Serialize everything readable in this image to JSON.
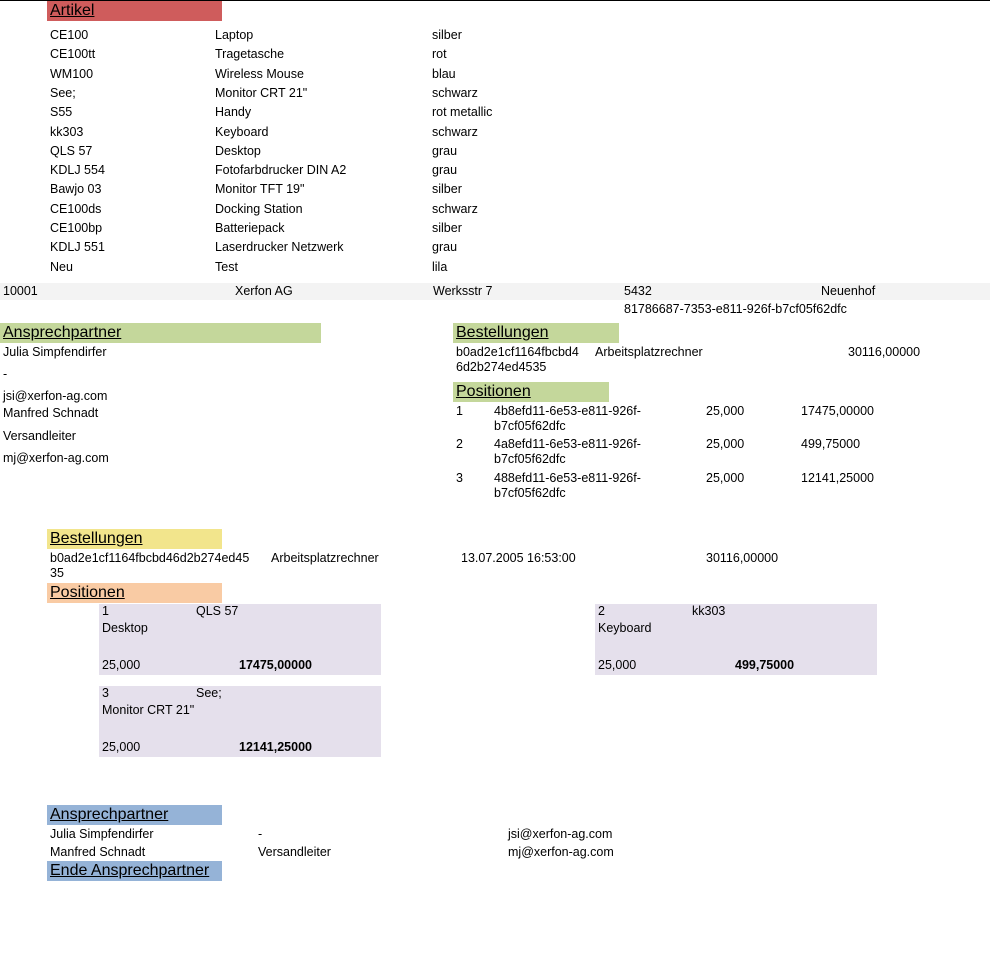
{
  "colors": {
    "artikel_header": "#cf5c5c",
    "green_header": "#c4d79b",
    "yellow_header": "#f2e58c",
    "orange_header": "#f9cba4",
    "blue_header": "#95b3d7",
    "card_bg": "#e5e0ec"
  },
  "artikel": {
    "header": "Artikel",
    "rows": [
      {
        "id": "CE100",
        "name": "Laptop",
        "color": "silber"
      },
      {
        "id": "CE100tt",
        "name": "Tragetasche",
        "color": "rot"
      },
      {
        "id": "WM100",
        "name": "Wireless Mouse",
        "color": "blau"
      },
      {
        "id": "See;",
        "name": "Monitor CRT 21\"",
        "color": "schwarz"
      },
      {
        "id": "S55",
        "name": "Handy",
        "color": "rot metallic"
      },
      {
        "id": "kk303",
        "name": "Keyboard",
        "color": "schwarz"
      },
      {
        "id": "QLS 57",
        "name": "Desktop",
        "color": "grau"
      },
      {
        "id": "KDLJ 554",
        "name": "Fotofarbdrucker DIN A2",
        "color": "grau"
      },
      {
        "id": "Bawjo 03",
        "name": "Monitor TFT 19\"",
        "color": "silber"
      },
      {
        "id": "CE100ds",
        "name": "Docking Station",
        "color": "schwarz"
      },
      {
        "id": "CE100bp",
        "name": "Batteriepack",
        "color": "silber"
      },
      {
        "id": "KDLJ 551",
        "name": "Laserdrucker Netzwerk",
        "color": "grau"
      },
      {
        "id": "Neu",
        "name": "Test",
        "color": "lila"
      }
    ]
  },
  "kunde": {
    "nr": "10001",
    "name": "Xerfon AG",
    "street": "Werksstr 7",
    "zip": "5432",
    "city": "Neuenhof",
    "guid": "81786687-7353-e811-926f-b7cf05f62dfc"
  },
  "ansprechpartner_left": {
    "header": "Ansprechpartner",
    "p1_name": "Julia Simpfendirfer",
    "p1_role": "-",
    "p1_email": "jsi@xerfon-ag.com",
    "p2_name": "Manfred Schnadt",
    "p2_role": "Versandleiter",
    "p2_email": "mj@xerfon-ag.com"
  },
  "bestellungen_right": {
    "header": "Bestellungen",
    "id": "b0ad2e1cf1164fbcbd46d2b274ed4535",
    "id_line1": "b0ad2e1cf1164fbcbd4",
    "id_line2": "6d2b274ed4535",
    "desc": "Arbeitsplatzrechner",
    "total": "30116,00000"
  },
  "positionen_right": {
    "header": "Positionen",
    "rows": [
      {
        "nr": "1",
        "guid_l1": "4b8efd11-6e53-e811-926f-",
        "guid_l2": "b7cf05f62dfc",
        "qty": "25,000",
        "amount": "17475,00000"
      },
      {
        "nr": "2",
        "guid_l1": "4a8efd11-6e53-e811-926f-",
        "guid_l2": "b7cf05f62dfc",
        "qty": "25,000",
        "amount": "499,75000"
      },
      {
        "nr": "3",
        "guid_l1": "488efd11-6e53-e811-926f-",
        "guid_l2": "b7cf05f62dfc",
        "qty": "25,000",
        "amount": "12141,25000"
      }
    ]
  },
  "bestellungen_main": {
    "header": "Bestellungen",
    "id_line1": "b0ad2e1cf1164fbcbd46d2b274ed45",
    "id_line2": "35",
    "desc": "Arbeitsplatzrechner",
    "date": "13.07.2005 16:53:00",
    "total": "30116,00000"
  },
  "positionen_main": {
    "header": "Positionen",
    "cards": [
      {
        "nr": "1",
        "code": "QLS 57",
        "name": "Desktop",
        "qty": "25,000",
        "amount": "17475,00000"
      },
      {
        "nr": "2",
        "code": "kk303",
        "name": "Keyboard",
        "qty": "25,000",
        "amount": "499,75000"
      },
      {
        "nr": "3",
        "code": "See;",
        "name": "Monitor CRT 21\"",
        "qty": "25,000",
        "amount": "12141,25000"
      }
    ]
  },
  "ansprechpartner_bottom": {
    "header": "Ansprechpartner",
    "rows": [
      {
        "name": "Julia Simpfendirfer",
        "role": "-",
        "email": "jsi@xerfon-ag.com"
      },
      {
        "name": "Manfred Schnadt",
        "role": "Versandleiter",
        "email": "mj@xerfon-ag.com"
      }
    ],
    "footer": "Ende Ansprechpartner"
  }
}
